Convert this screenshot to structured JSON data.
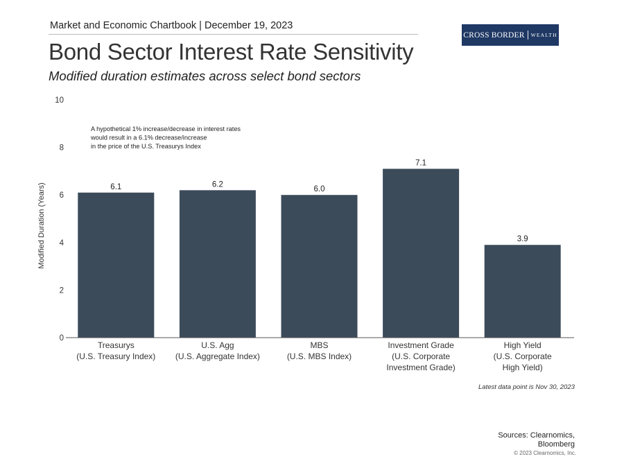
{
  "header": {
    "chartbook": "Market and Economic Chartbook | December 19, 2023",
    "title": "Bond Sector Interest Rate Sensitivity",
    "subtitle": "Modified duration estimates across select bond sectors"
  },
  "logo": {
    "part1": "CROSS BORDER",
    "part2": "WEALTH",
    "bg_color": "#1f3864"
  },
  "chart_data": {
    "type": "bar",
    "title": "Bond Sector Interest Rate Sensitivity",
    "xlabel": "",
    "ylabel": "Modified Duration (Years)",
    "ylim": [
      0,
      10
    ],
    "yticks": [
      0,
      2,
      4,
      6,
      8,
      10
    ],
    "grid": false,
    "bar_color": "#3c4b5a",
    "categories": [
      [
        "Treasurys",
        "(U.S. Treasury Index)"
      ],
      [
        "U.S. Agg",
        "(U.S. Aggregate Index)"
      ],
      [
        "MBS",
        "(U.S. MBS Index)"
      ],
      [
        "Investment Grade",
        "(U.S. Corporate",
        "Investment Grade)"
      ],
      [
        "High Yield",
        "(U.S. Corporate",
        "High Yield)"
      ]
    ],
    "values": [
      6.1,
      6.2,
      6.0,
      7.1,
      3.9
    ],
    "value_labels": [
      "6.1",
      "6.2",
      "6.0",
      "7.1",
      "3.9"
    ],
    "annotation": [
      "A hypothetical 1% increase/decrease in interest rates",
      "would result in a 6.1% decrease/increase",
      "in the price of the U.S. Treasurys Index"
    ]
  },
  "footer": {
    "latest": "Latest data point is Nov 30, 2023",
    "sources": "Sources: Clearnomics, Bloomberg",
    "copyright": "© 2023 Clearnomics, Inc."
  }
}
